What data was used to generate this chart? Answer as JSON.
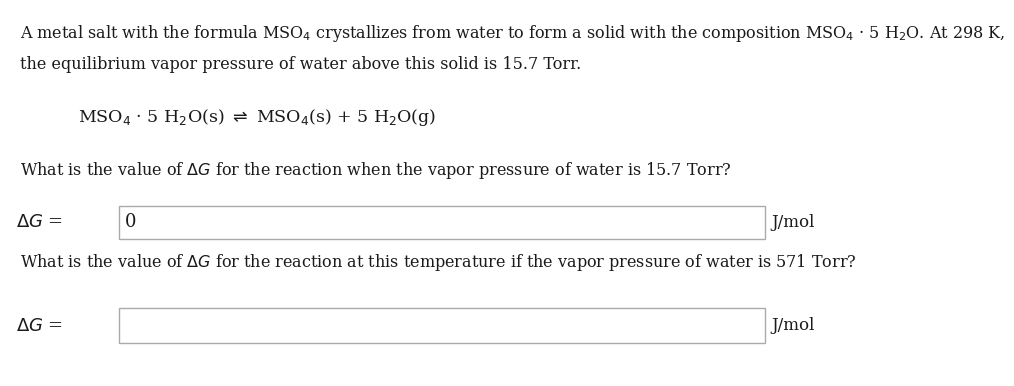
{
  "bg_color": "#ffffff",
  "text_color": "#1a1a1a",
  "para1_line1": "A metal salt with the formula MSO$_4$ crystallizes from water to form a solid with the composition MSO$_4$ · 5 H$_2$O. At 298 K,",
  "para1_line2": "the equilibrium vapor pressure of water above this solid is 15.7 Torr.",
  "equation": "MSO$_4$ · 5 H$_2$O(s) $\\rightleftharpoons$ MSO$_4$(s) + 5 H$_2$O(g)",
  "question1": "What is the value of $\\Delta G$ for the reaction when the vapor pressure of water is 15.7 Torr?",
  "answer1_label": "$\\Delta G$ =",
  "answer1_value": "0",
  "answer1_unit": "J/mol",
  "question2": "What is the value of $\\Delta G$ for the reaction at this temperature if the vapor pressure of water is 571 Torr?",
  "answer2_label": "$\\Delta G$ =",
  "answer2_unit": "J/mol",
  "font_size_body": 11.5,
  "font_size_equation": 12.5,
  "font_size_answer_label": 13,
  "font_size_unit": 12
}
